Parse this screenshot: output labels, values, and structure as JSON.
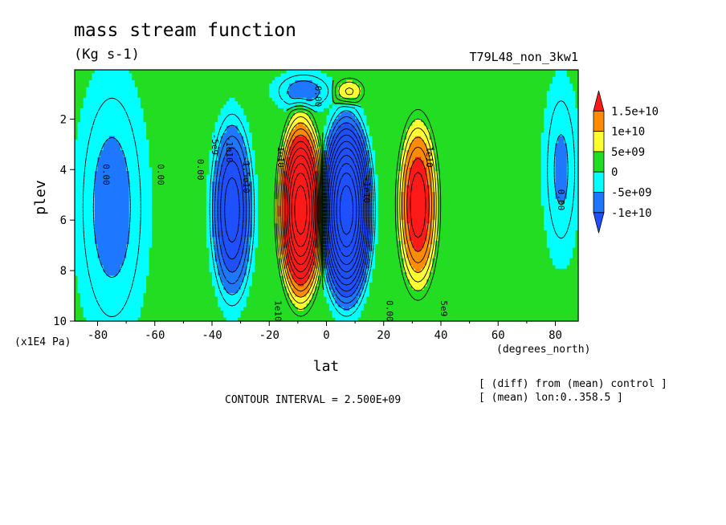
{
  "chart_data": {
    "type": "heatmap",
    "title": "mass stream function",
    "units": "(Kg s-1)",
    "experiment": "T79L48_non_3kw1",
    "xlabel": "lat",
    "x_units": "(degrees_north)",
    "ylabel": "plev",
    "y_units": "(x1E4 Pa)",
    "xlim": [
      -88,
      88
    ],
    "ylim": [
      0.05,
      10
    ],
    "y_inverted": true,
    "x_ticks": [
      -80,
      -60,
      -40,
      -20,
      0,
      20,
      40,
      60,
      80
    ],
    "x_tick_labels": [
      "-80",
      "-60",
      "-40",
      "-20",
      "0",
      "20",
      "40",
      "60",
      "80"
    ],
    "y_ticks": [
      2,
      4,
      6,
      8,
      10
    ],
    "y_tick_labels": [
      "2",
      "4",
      "6",
      "8",
      "10"
    ],
    "grid": false,
    "contour_interval_text": "CONTOUR INTERVAL = 2.500E+09",
    "notes": [
      "[ (diff) from (mean) control ]",
      "[ (mean) lon:0..358.5 ]"
    ],
    "colorbar": {
      "placement": "right",
      "levels": [
        {
          "label": "1.5e+10",
          "value": 15000000000
        },
        {
          "label": "1e+10",
          "value": 10000000000
        },
        {
          "label": "5e+09",
          "value": 5000000000
        },
        {
          "label": "0",
          "value": 0
        },
        {
          "label": "-5e+09",
          "value": -5000000000
        },
        {
          "label": "-1e+10",
          "value": -10000000000
        }
      ],
      "colors": [
        "#ff1a1a",
        "#ff8c00",
        "#ffff33",
        "#22dd22",
        "#00ffff",
        "#1e78ff",
        "#1e50ff"
      ]
    },
    "cells": [
      {
        "name": "north-subtropical-positive-cell",
        "lat_center": 32,
        "lat_halfwidth": 9,
        "plev_center": 5.4,
        "plev_halfwidth": 4.3,
        "peak": 20000000000
      },
      {
        "name": "south-tropical-positive-cell",
        "lat_center": -9,
        "lat_halfwidth": 10,
        "plev_center": 5.6,
        "plev_halfwidth": 4.6,
        "peak": 32000000000
      },
      {
        "name": "north-tropical-negative-cell",
        "lat_center": 7,
        "lat_halfwidth": 11,
        "plev_center": 5.6,
        "plev_halfwidth": 4.6,
        "peak": -32000000000
      },
      {
        "name": "south-subtropical-negative-cell",
        "lat_center": -33,
        "lat_halfwidth": 9,
        "plev_center": 5.6,
        "plev_halfwidth": 4.4,
        "peak": -17000000000
      },
      {
        "name": "south-polar-negative-band",
        "lat_center": -75,
        "lat_halfwidth": 14,
        "plev_center": 5.5,
        "plev_halfwidth": 6,
        "peak": -7000000000
      },
      {
        "name": "north-polar-negative-band",
        "lat_center": 82,
        "lat_halfwidth": 7,
        "plev_center": 4,
        "plev_halfwidth": 4,
        "peak": -6000000000
      },
      {
        "name": "upper-south-negative-cell",
        "lat_center": -8,
        "lat_halfwidth": 12,
        "plev_center": 0.9,
        "plev_halfwidth": 0.9,
        "peak": -7000000000
      },
      {
        "name": "upper-north-positive-cell",
        "lat_center": 8,
        "lat_halfwidth": 7,
        "plev_center": 0.9,
        "plev_halfwidth": 0.7,
        "peak": 8000000000
      }
    ],
    "contour_labels": [
      {
        "text": "0.00",
        "lat": -78,
        "plev": 4.2
      },
      {
        "text": "0.00",
        "lat": -59,
        "plev": 4.2
      },
      {
        "text": "0.00",
        "lat": -45,
        "plev": 4.0
      },
      {
        "text": "-5e9",
        "lat": -40,
        "plev": 3.0
      },
      {
        "text": "-1e10",
        "lat": -35,
        "plev": 3.2
      },
      {
        "text": "-1.5e10",
        "lat": -29,
        "plev": 4.2
      },
      {
        "text": "1e10",
        "lat": -17,
        "plev": 3.5
      },
      {
        "text": "1e10",
        "lat": -18,
        "plev": 9.6
      },
      {
        "text": "-1e10",
        "lat": 13,
        "plev": 4.8
      },
      {
        "text": "0.00",
        "lat": 21,
        "plev": 9.6
      },
      {
        "text": "1e10",
        "lat": 35,
        "plev": 3.5
      },
      {
        "text": "5e9",
        "lat": 40,
        "plev": 9.5
      },
      {
        "text": "0.00",
        "lat": 81,
        "plev": 5.2
      },
      {
        "text": "0.00",
        "lat": -4,
        "plev": 1.1
      }
    ]
  }
}
